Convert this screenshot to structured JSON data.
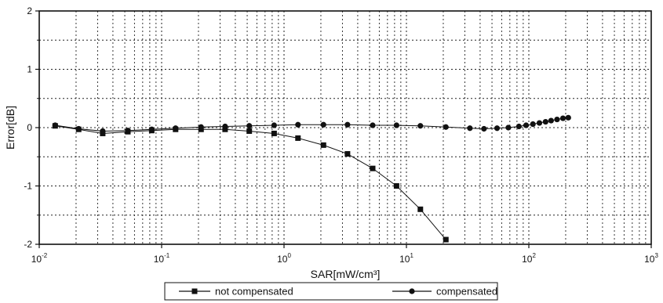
{
  "chart_data": {
    "type": "line",
    "title": "",
    "xlabel": "SAR[mW/cm³]",
    "ylabel": "Error[dB]",
    "xscale": "log",
    "xlim": [
      0.01,
      1000
    ],
    "ylim": [
      -2,
      2
    ],
    "grid": true,
    "legend_position": "bottom",
    "x_ticks": [
      {
        "value": 0.01,
        "base": "10",
        "exp": "-2"
      },
      {
        "value": 0.1,
        "base": "10",
        "exp": "-1"
      },
      {
        "value": 1,
        "base": "10",
        "exp": "0"
      },
      {
        "value": 10,
        "base": "10",
        "exp": "1"
      },
      {
        "value": 100,
        "base": "10",
        "exp": "2"
      },
      {
        "value": 1000,
        "base": "10",
        "exp": "3"
      }
    ],
    "y_ticks": [
      2,
      1,
      0,
      -1,
      -2
    ],
    "series": [
      {
        "name": "not compensated",
        "marker": "square",
        "color": "#111111",
        "x": [
          0.0135,
          0.021,
          0.033,
          0.053,
          0.083,
          0.13,
          0.21,
          0.33,
          0.52,
          0.83,
          1.3,
          2.1,
          3.3,
          5.3,
          8.3,
          13,
          21
        ],
        "y": [
          0.03,
          -0.03,
          -0.1,
          -0.07,
          -0.05,
          -0.03,
          -0.03,
          -0.03,
          -0.06,
          -0.1,
          -0.18,
          -0.3,
          -0.45,
          -0.7,
          -1.0,
          -1.4,
          -1.92
        ]
      },
      {
        "name": "compensated",
        "marker": "circle",
        "color": "#111111",
        "x": [
          0.0135,
          0.021,
          0.033,
          0.053,
          0.083,
          0.13,
          0.21,
          0.33,
          0.52,
          0.83,
          1.3,
          2.1,
          3.3,
          5.3,
          8.3,
          13,
          21,
          33,
          43,
          55,
          68,
          83,
          95,
          108,
          122,
          137,
          152,
          170,
          190,
          210
        ],
        "y": [
          0.04,
          -0.02,
          -0.06,
          -0.05,
          -0.03,
          -0.01,
          0.01,
          0.02,
          0.03,
          0.04,
          0.05,
          0.05,
          0.05,
          0.04,
          0.04,
          0.03,
          0.01,
          -0.01,
          -0.02,
          -0.01,
          0.0,
          0.02,
          0.04,
          0.06,
          0.08,
          0.1,
          0.12,
          0.14,
          0.16,
          0.17
        ]
      }
    ]
  }
}
